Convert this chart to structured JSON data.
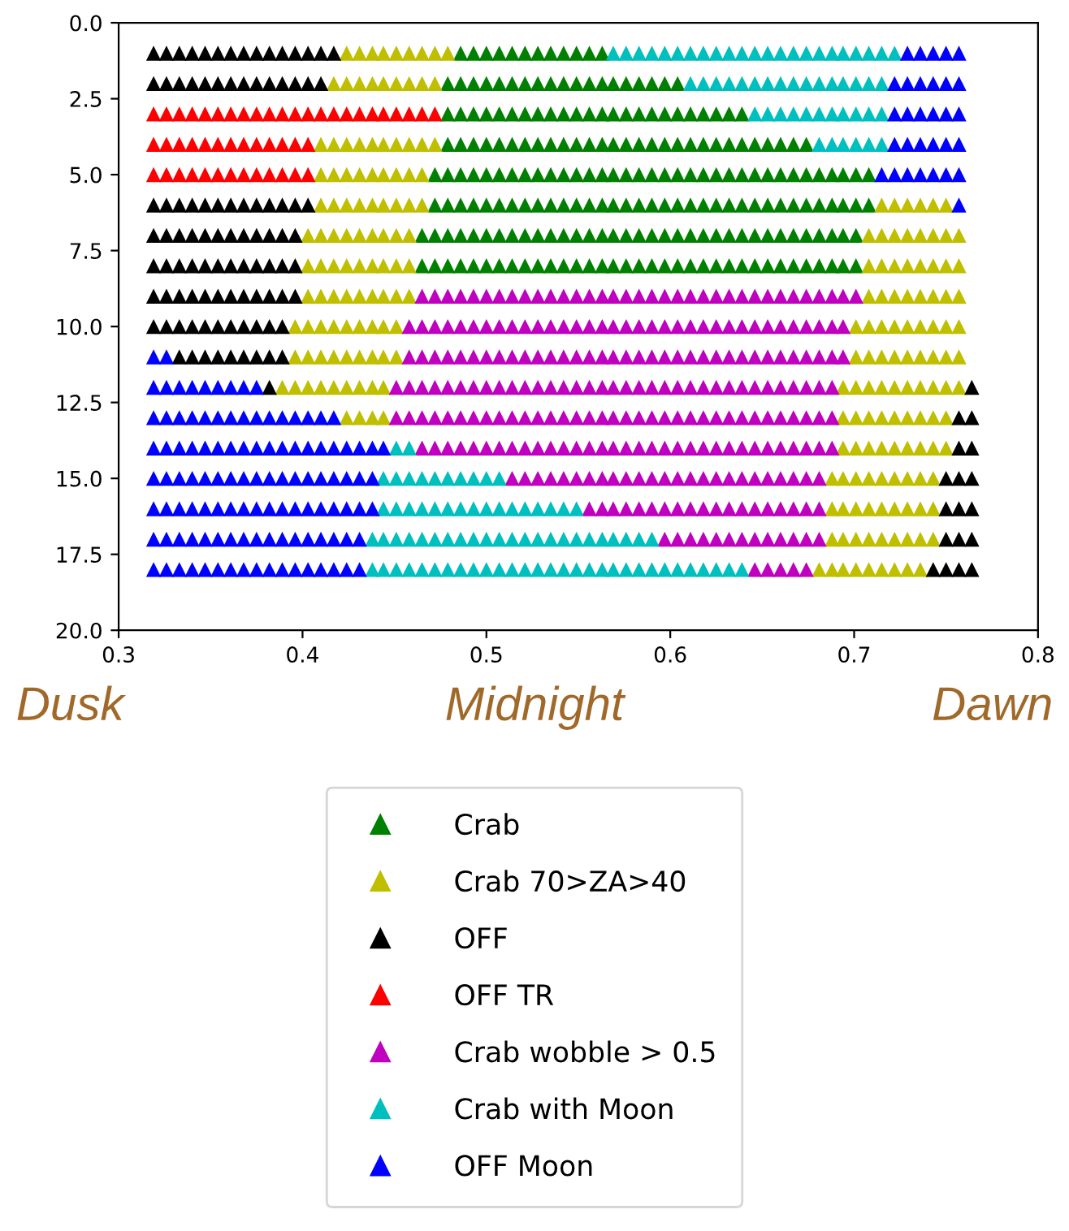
{
  "chart_data": {
    "type": "scatter",
    "marker": "triangle",
    "legend": "bottom",
    "xlim": [
      0.3,
      0.8
    ],
    "xticks": [
      0.3,
      0.4,
      0.5,
      0.6,
      0.7,
      0.8
    ],
    "ylim": [
      20,
      0
    ],
    "yticks": [
      {
        "value": 0,
        "label": "0.0"
      },
      {
        "value": 2.5,
        "label": "2.5"
      },
      {
        "value": 5,
        "label": "5.0"
      },
      {
        "value": 7.5,
        "label": "7.5"
      },
      {
        "value": 10,
        "label": "10.0"
      },
      {
        "value": 12.5,
        "label": "12.5"
      },
      {
        "value": 15,
        "label": "15.0"
      },
      {
        "value": 17.5,
        "label": "17.5"
      },
      {
        "value": 20,
        "label": "20.0"
      }
    ],
    "annotations": [
      "Dusk",
      "Midnight",
      "Dawn"
    ],
    "series": [
      {
        "name": "Crab",
        "color": "#008000",
        "x": [
          0.486,
          0.493,
          0.5,
          0.507,
          0.514,
          0.521,
          0.528,
          0.535,
          0.542,
          0.549,
          0.556,
          0.563,
          0.479,
          0.486,
          0.493,
          0.5,
          0.507,
          0.514,
          0.521,
          0.528,
          0.535,
          0.542,
          0.549,
          0.556,
          0.563,
          0.569,
          0.576,
          0.583,
          0.59,
          0.597,
          0.604,
          0.479,
          0.486,
          0.493,
          0.5,
          0.507,
          0.514,
          0.521,
          0.528,
          0.535,
          0.542,
          0.549,
          0.556,
          0.563,
          0.569,
          0.576,
          0.583,
          0.59,
          0.597,
          0.604,
          0.611,
          0.618,
          0.625,
          0.632,
          0.639,
          0.479,
          0.486,
          0.493,
          0.5,
          0.507,
          0.514,
          0.521,
          0.528,
          0.535,
          0.542,
          0.549,
          0.556,
          0.563,
          0.569,
          0.576,
          0.583,
          0.59,
          0.597,
          0.604,
          0.611,
          0.618,
          0.625,
          0.632,
          0.639,
          0.646,
          0.653,
          0.66,
          0.667,
          0.674,
          0.472,
          0.479,
          0.486,
          0.493,
          0.5,
          0.507,
          0.514,
          0.521,
          0.528,
          0.535,
          0.542,
          0.549,
          0.556,
          0.563,
          0.569,
          0.576,
          0.583,
          0.59,
          0.597,
          0.604,
          0.611,
          0.618,
          0.625,
          0.632,
          0.639,
          0.646,
          0.653,
          0.66,
          0.667,
          0.674,
          0.681,
          0.688,
          0.694,
          0.701,
          0.708,
          0.472,
          0.479,
          0.486,
          0.493,
          0.5,
          0.507,
          0.514,
          0.521,
          0.528,
          0.535,
          0.542,
          0.549,
          0.556,
          0.563,
          0.569,
          0.576,
          0.583,
          0.59,
          0.597,
          0.604,
          0.611,
          0.618,
          0.625,
          0.632,
          0.639,
          0.646,
          0.653,
          0.66,
          0.667,
          0.674,
          0.681,
          0.688,
          0.694,
          0.701,
          0.708,
          0.465,
          0.472,
          0.479,
          0.486,
          0.493,
          0.5,
          0.507,
          0.514,
          0.521,
          0.528,
          0.535,
          0.542,
          0.549,
          0.556,
          0.563,
          0.569,
          0.576,
          0.583,
          0.59,
          0.597,
          0.604,
          0.611,
          0.618,
          0.625,
          0.632,
          0.639,
          0.646,
          0.653,
          0.66,
          0.667,
          0.674,
          0.681,
          0.688,
          0.694,
          0.701,
          0.465,
          0.472,
          0.479,
          0.486,
          0.493,
          0.5,
          0.507,
          0.514,
          0.521,
          0.528,
          0.535,
          0.542,
          0.549,
          0.556,
          0.563,
          0.569,
          0.576,
          0.583,
          0.59,
          0.597,
          0.604,
          0.611,
          0.618,
          0.625,
          0.632,
          0.639,
          0.646,
          0.653,
          0.66,
          0.667,
          0.674,
          0.681,
          0.688,
          0.694,
          0.701
        ],
        "values": [
          1,
          1,
          1,
          1,
          1,
          1,
          1,
          1,
          1,
          1,
          1,
          1,
          2,
          2,
          2,
          2,
          2,
          2,
          2,
          2,
          2,
          2,
          2,
          2,
          2,
          2,
          2,
          2,
          2,
          2,
          2,
          3,
          3,
          3,
          3,
          3,
          3,
          3,
          3,
          3,
          3,
          3,
          3,
          3,
          3,
          3,
          3,
          3,
          3,
          3,
          3,
          3,
          3,
          3,
          3,
          4,
          4,
          4,
          4,
          4,
          4,
          4,
          4,
          4,
          4,
          4,
          4,
          4,
          4,
          4,
          4,
          4,
          4,
          4,
          4,
          4,
          4,
          4,
          4,
          4,
          4,
          4,
          4,
          4,
          5,
          5,
          5,
          5,
          5,
          5,
          5,
          5,
          5,
          5,
          5,
          5,
          5,
          5,
          5,
          5,
          5,
          5,
          5,
          5,
          5,
          5,
          5,
          5,
          5,
          5,
          5,
          5,
          5,
          5,
          5,
          5,
          5,
          5,
          5,
          6,
          6,
          6,
          6,
          6,
          6,
          6,
          6,
          6,
          6,
          6,
          6,
          6,
          6,
          6,
          6,
          6,
          6,
          6,
          6,
          6,
          6,
          6,
          6,
          6,
          6,
          6,
          6,
          6,
          6,
          6,
          6,
          6,
          6,
          6,
          7,
          7,
          7,
          7,
          7,
          7,
          7,
          7,
          7,
          7,
          7,
          7,
          7,
          7,
          7,
          7,
          7,
          7,
          7,
          7,
          7,
          7,
          7,
          7,
          7,
          7,
          7,
          7,
          7,
          7,
          7,
          7,
          7,
          7,
          7,
          8,
          8,
          8,
          8,
          8,
          8,
          8,
          8,
          8,
          8,
          8,
          8,
          8,
          8,
          8,
          8,
          8,
          8,
          8,
          8,
          8,
          8,
          8,
          8,
          8,
          8,
          8,
          8,
          8,
          8,
          8,
          8,
          8,
          8,
          8
        ]
      },
      {
        "name": "Crab 70>ZA>40",
        "color": "#bfbf00",
        "x": [
          0.424,
          0.431,
          0.438,
          0.444,
          0.451,
          0.458,
          0.465,
          0.472,
          0.479,
          0.417,
          0.424,
          0.431,
          0.438,
          0.444,
          0.451,
          0.458,
          0.465,
          0.472,
          0.41,
          0.417,
          0.424,
          0.431,
          0.438,
          0.444,
          0.451,
          0.458,
          0.465,
          0.472,
          0.41,
          0.417,
          0.424,
          0.431,
          0.438,
          0.444,
          0.451,
          0.458,
          0.465,
          0.41,
          0.417,
          0.424,
          0.431,
          0.438,
          0.444,
          0.451,
          0.458,
          0.465,
          0.715,
          0.722,
          0.729,
          0.736,
          0.743,
          0.75,
          0.403,
          0.41,
          0.417,
          0.424,
          0.431,
          0.438,
          0.444,
          0.451,
          0.458,
          0.708,
          0.715,
          0.722,
          0.729,
          0.736,
          0.743,
          0.75,
          0.757,
          0.403,
          0.41,
          0.417,
          0.424,
          0.431,
          0.438,
          0.444,
          0.451,
          0.458,
          0.708,
          0.715,
          0.722,
          0.729,
          0.736,
          0.743,
          0.75,
          0.757,
          0.403,
          0.41,
          0.417,
          0.424,
          0.431,
          0.438,
          0.444,
          0.451,
          0.458,
          0.708,
          0.715,
          0.722,
          0.729,
          0.736,
          0.743,
          0.75,
          0.757,
          0.396,
          0.403,
          0.41,
          0.417,
          0.424,
          0.431,
          0.438,
          0.444,
          0.451,
          0.701,
          0.708,
          0.715,
          0.722,
          0.729,
          0.736,
          0.743,
          0.75,
          0.757,
          0.396,
          0.403,
          0.41,
          0.417,
          0.424,
          0.431,
          0.438,
          0.444,
          0.451,
          0.701,
          0.708,
          0.715,
          0.722,
          0.729,
          0.736,
          0.743,
          0.75,
          0.757,
          0.389,
          0.396,
          0.403,
          0.41,
          0.417,
          0.424,
          0.431,
          0.438,
          0.444,
          0.694,
          0.701,
          0.708,
          0.715,
          0.722,
          0.729,
          0.736,
          0.743,
          0.75,
          0.757,
          0.424,
          0.431,
          0.438,
          0.444,
          0.694,
          0.701,
          0.708,
          0.715,
          0.722,
          0.729,
          0.736,
          0.743,
          0.75,
          0.694,
          0.701,
          0.708,
          0.715,
          0.722,
          0.729,
          0.736,
          0.743,
          0.75,
          0.688,
          0.694,
          0.701,
          0.708,
          0.715,
          0.722,
          0.729,
          0.736,
          0.743,
          0.688,
          0.694,
          0.701,
          0.708,
          0.715,
          0.722,
          0.729,
          0.736,
          0.743,
          0.688,
          0.694,
          0.701,
          0.708,
          0.715,
          0.722,
          0.729,
          0.736,
          0.743,
          0.681,
          0.688,
          0.694,
          0.701,
          0.708,
          0.715,
          0.722,
          0.729,
          0.736
        ],
        "values": [
          1,
          1,
          1,
          1,
          1,
          1,
          1,
          1,
          1,
          2,
          2,
          2,
          2,
          2,
          2,
          2,
          2,
          2,
          4,
          4,
          4,
          4,
          4,
          4,
          4,
          4,
          4,
          4,
          5,
          5,
          5,
          5,
          5,
          5,
          5,
          5,
          5,
          6,
          6,
          6,
          6,
          6,
          6,
          6,
          6,
          6,
          6,
          6,
          6,
          6,
          6,
          6,
          7,
          7,
          7,
          7,
          7,
          7,
          7,
          7,
          7,
          7,
          7,
          7,
          7,
          7,
          7,
          7,
          7,
          8,
          8,
          8,
          8,
          8,
          8,
          8,
          8,
          8,
          8,
          8,
          8,
          8,
          8,
          8,
          8,
          8,
          9,
          9,
          9,
          9,
          9,
          9,
          9,
          9,
          9,
          9,
          9,
          9,
          9,
          9,
          9,
          9,
          9,
          10,
          10,
          10,
          10,
          10,
          10,
          10,
          10,
          10,
          10,
          10,
          10,
          10,
          10,
          10,
          10,
          10,
          10,
          11,
          11,
          11,
          11,
          11,
          11,
          11,
          11,
          11,
          11,
          11,
          11,
          11,
          11,
          11,
          11,
          11,
          11,
          12,
          12,
          12,
          12,
          12,
          12,
          12,
          12,
          12,
          12,
          12,
          12,
          12,
          12,
          12,
          12,
          12,
          12,
          12,
          13,
          13,
          13,
          13,
          13,
          13,
          13,
          13,
          13,
          13,
          13,
          13,
          13,
          14,
          14,
          14,
          14,
          14,
          14,
          14,
          14,
          14,
          15,
          15,
          15,
          15,
          15,
          15,
          15,
          15,
          15,
          16,
          16,
          16,
          16,
          16,
          16,
          16,
          16,
          16,
          17,
          17,
          17,
          17,
          17,
          17,
          17,
          17,
          17,
          18,
          18,
          18,
          18,
          18,
          18,
          18,
          18,
          18
        ]
      },
      {
        "name": "OFF",
        "color": "#000000",
        "x": [
          0.319,
          0.326,
          0.333,
          0.34,
          0.347,
          0.354,
          0.361,
          0.368,
          0.375,
          0.382,
          0.389,
          0.396,
          0.403,
          0.41,
          0.417,
          0.319,
          0.326,
          0.333,
          0.34,
          0.347,
          0.354,
          0.361,
          0.368,
          0.375,
          0.382,
          0.389,
          0.396,
          0.403,
          0.41,
          0.319,
          0.326,
          0.333,
          0.34,
          0.347,
          0.354,
          0.361,
          0.368,
          0.375,
          0.382,
          0.389,
          0.396,
          0.403,
          0.319,
          0.326,
          0.333,
          0.34,
          0.347,
          0.354,
          0.361,
          0.368,
          0.375,
          0.382,
          0.389,
          0.396,
          0.319,
          0.326,
          0.333,
          0.34,
          0.347,
          0.354,
          0.361,
          0.368,
          0.375,
          0.382,
          0.389,
          0.396,
          0.319,
          0.326,
          0.333,
          0.34,
          0.347,
          0.354,
          0.361,
          0.368,
          0.375,
          0.382,
          0.389,
          0.396,
          0.319,
          0.326,
          0.333,
          0.34,
          0.347,
          0.354,
          0.361,
          0.368,
          0.375,
          0.382,
          0.389,
          0.333,
          0.34,
          0.347,
          0.354,
          0.361,
          0.368,
          0.375,
          0.382,
          0.389,
          0.382,
          0.764,
          0.757,
          0.764,
          0.757,
          0.764,
          0.75,
          0.757,
          0.764,
          0.75,
          0.757,
          0.764,
          0.75,
          0.757,
          0.764,
          0.743,
          0.75,
          0.757,
          0.764
        ],
        "values": [
          1,
          1,
          1,
          1,
          1,
          1,
          1,
          1,
          1,
          1,
          1,
          1,
          1,
          1,
          1,
          2,
          2,
          2,
          2,
          2,
          2,
          2,
          2,
          2,
          2,
          2,
          2,
          2,
          2,
          6,
          6,
          6,
          6,
          6,
          6,
          6,
          6,
          6,
          6,
          6,
          6,
          6,
          7,
          7,
          7,
          7,
          7,
          7,
          7,
          7,
          7,
          7,
          7,
          7,
          8,
          8,
          8,
          8,
          8,
          8,
          8,
          8,
          8,
          8,
          8,
          8,
          9,
          9,
          9,
          9,
          9,
          9,
          9,
          9,
          9,
          9,
          9,
          9,
          10,
          10,
          10,
          10,
          10,
          10,
          10,
          10,
          10,
          10,
          10,
          11,
          11,
          11,
          11,
          11,
          11,
          11,
          11,
          11,
          12,
          12,
          13,
          13,
          14,
          14,
          15,
          15,
          15,
          16,
          16,
          16,
          17,
          17,
          17,
          18,
          18,
          18,
          18
        ]
      },
      {
        "name": "OFF TR",
        "color": "#ff0000",
        "x": [
          0.319,
          0.326,
          0.333,
          0.34,
          0.347,
          0.354,
          0.361,
          0.368,
          0.375,
          0.382,
          0.389,
          0.396,
          0.403,
          0.41,
          0.417,
          0.424,
          0.431,
          0.438,
          0.444,
          0.451,
          0.458,
          0.465,
          0.472,
          0.319,
          0.326,
          0.333,
          0.34,
          0.347,
          0.354,
          0.361,
          0.368,
          0.375,
          0.382,
          0.389,
          0.396,
          0.403,
          0.319,
          0.326,
          0.333,
          0.34,
          0.347,
          0.354,
          0.361,
          0.368,
          0.375,
          0.382,
          0.389,
          0.396,
          0.403
        ],
        "values": [
          3,
          3,
          3,
          3,
          3,
          3,
          3,
          3,
          3,
          3,
          3,
          3,
          3,
          3,
          3,
          3,
          3,
          3,
          3,
          3,
          3,
          3,
          3,
          4,
          4,
          4,
          4,
          4,
          4,
          4,
          4,
          4,
          4,
          4,
          4,
          4,
          5,
          5,
          5,
          5,
          5,
          5,
          5,
          5,
          5,
          5,
          5,
          5,
          5
        ]
      },
      {
        "name": "Crab wobble > 0.5",
        "color": "#bf00bf",
        "x": [
          0.465,
          0.472,
          0.479,
          0.486,
          0.493,
          0.5,
          0.507,
          0.514,
          0.521,
          0.528,
          0.535,
          0.542,
          0.549,
          0.556,
          0.563,
          0.569,
          0.576,
          0.583,
          0.59,
          0.597,
          0.604,
          0.611,
          0.618,
          0.625,
          0.632,
          0.639,
          0.646,
          0.653,
          0.66,
          0.667,
          0.674,
          0.681,
          0.688,
          0.694,
          0.701,
          0.458,
          0.465,
          0.472,
          0.479,
          0.486,
          0.493,
          0.5,
          0.507,
          0.514,
          0.521,
          0.528,
          0.535,
          0.542,
          0.549,
          0.556,
          0.563,
          0.569,
          0.576,
          0.583,
          0.59,
          0.597,
          0.604,
          0.611,
          0.618,
          0.625,
          0.632,
          0.639,
          0.646,
          0.653,
          0.66,
          0.667,
          0.674,
          0.681,
          0.688,
          0.694,
          0.458,
          0.465,
          0.472,
          0.479,
          0.486,
          0.493,
          0.5,
          0.507,
          0.514,
          0.521,
          0.528,
          0.535,
          0.542,
          0.549,
          0.556,
          0.563,
          0.569,
          0.576,
          0.583,
          0.59,
          0.597,
          0.604,
          0.611,
          0.618,
          0.625,
          0.632,
          0.639,
          0.646,
          0.653,
          0.66,
          0.667,
          0.674,
          0.681,
          0.688,
          0.694,
          0.451,
          0.458,
          0.465,
          0.472,
          0.479,
          0.486,
          0.493,
          0.5,
          0.507,
          0.514,
          0.521,
          0.528,
          0.535,
          0.542,
          0.549,
          0.556,
          0.563,
          0.569,
          0.576,
          0.583,
          0.59,
          0.597,
          0.604,
          0.611,
          0.618,
          0.625,
          0.632,
          0.639,
          0.646,
          0.653,
          0.66,
          0.667,
          0.674,
          0.681,
          0.688,
          0.451,
          0.458,
          0.465,
          0.472,
          0.479,
          0.486,
          0.493,
          0.5,
          0.507,
          0.514,
          0.521,
          0.528,
          0.535,
          0.542,
          0.549,
          0.556,
          0.563,
          0.569,
          0.576,
          0.583,
          0.59,
          0.597,
          0.604,
          0.611,
          0.618,
          0.625,
          0.632,
          0.639,
          0.646,
          0.653,
          0.66,
          0.667,
          0.674,
          0.681,
          0.688,
          0.465,
          0.472,
          0.479,
          0.486,
          0.493,
          0.5,
          0.507,
          0.514,
          0.521,
          0.528,
          0.535,
          0.542,
          0.549,
          0.556,
          0.563,
          0.569,
          0.576,
          0.583,
          0.59,
          0.597,
          0.604,
          0.611,
          0.618,
          0.625,
          0.632,
          0.639,
          0.646,
          0.653,
          0.66,
          0.667,
          0.674,
          0.681,
          0.688,
          0.514,
          0.521,
          0.528,
          0.535,
          0.542,
          0.549,
          0.556,
          0.563,
          0.569,
          0.576,
          0.583,
          0.59,
          0.597,
          0.604,
          0.611,
          0.618,
          0.625,
          0.632,
          0.639,
          0.646,
          0.653,
          0.66,
          0.667,
          0.674,
          0.681,
          0.556,
          0.563,
          0.569,
          0.576,
          0.583,
          0.59,
          0.597,
          0.604,
          0.611,
          0.618,
          0.625,
          0.632,
          0.639,
          0.646,
          0.653,
          0.66,
          0.667,
          0.674,
          0.681,
          0.597,
          0.604,
          0.611,
          0.618,
          0.625,
          0.632,
          0.639,
          0.646,
          0.653,
          0.66,
          0.667,
          0.674,
          0.681,
          0.646,
          0.653,
          0.66,
          0.667,
          0.674
        ],
        "values": [
          9,
          9,
          9,
          9,
          9,
          9,
          9,
          9,
          9,
          9,
          9,
          9,
          9,
          9,
          9,
          9,
          9,
          9,
          9,
          9,
          9,
          9,
          9,
          9,
          9,
          9,
          9,
          9,
          9,
          9,
          9,
          9,
          9,
          9,
          9,
          10,
          10,
          10,
          10,
          10,
          10,
          10,
          10,
          10,
          10,
          10,
          10,
          10,
          10,
          10,
          10,
          10,
          10,
          10,
          10,
          10,
          10,
          10,
          10,
          10,
          10,
          10,
          10,
          10,
          10,
          10,
          10,
          10,
          10,
          10,
          11,
          11,
          11,
          11,
          11,
          11,
          11,
          11,
          11,
          11,
          11,
          11,
          11,
          11,
          11,
          11,
          11,
          11,
          11,
          11,
          11,
          11,
          11,
          11,
          11,
          11,
          11,
          11,
          11,
          11,
          11,
          11,
          11,
          11,
          11,
          12,
          12,
          12,
          12,
          12,
          12,
          12,
          12,
          12,
          12,
          12,
          12,
          12,
          12,
          12,
          12,
          12,
          12,
          12,
          12,
          12,
          12,
          12,
          12,
          12,
          12,
          12,
          12,
          12,
          12,
          12,
          12,
          12,
          12,
          12,
          13,
          13,
          13,
          13,
          13,
          13,
          13,
          13,
          13,
          13,
          13,
          13,
          13,
          13,
          13,
          13,
          13,
          13,
          13,
          13,
          13,
          13,
          13,
          13,
          13,
          13,
          13,
          13,
          13,
          13,
          13,
          13,
          13,
          13,
          13,
          14,
          14,
          14,
          14,
          14,
          14,
          14,
          14,
          14,
          14,
          14,
          14,
          14,
          14,
          14,
          14,
          14,
          14,
          14,
          14,
          14,
          14,
          14,
          14,
          14,
          14,
          14,
          14,
          14,
          14,
          14,
          14,
          14,
          15,
          15,
          15,
          15,
          15,
          15,
          15,
          15,
          15,
          15,
          15,
          15,
          15,
          15,
          15,
          15,
          15,
          15,
          15,
          15,
          15,
          15,
          15,
          15,
          15,
          16,
          16,
          16,
          16,
          16,
          16,
          16,
          16,
          16,
          16,
          16,
          16,
          16,
          16,
          16,
          16,
          16,
          16,
          16,
          17,
          17,
          17,
          17,
          17,
          17,
          17,
          17,
          17,
          17,
          17,
          17,
          17,
          18,
          18,
          18,
          18,
          18
        ]
      },
      {
        "name": "Crab with Moon",
        "color": "#00bfbf",
        "x": [
          0.569,
          0.576,
          0.583,
          0.59,
          0.597,
          0.604,
          0.611,
          0.618,
          0.625,
          0.632,
          0.639,
          0.646,
          0.653,
          0.66,
          0.667,
          0.674,
          0.681,
          0.688,
          0.694,
          0.701,
          0.708,
          0.715,
          0.722,
          0.611,
          0.618,
          0.625,
          0.632,
          0.639,
          0.646,
          0.653,
          0.66,
          0.667,
          0.674,
          0.681,
          0.688,
          0.694,
          0.701,
          0.708,
          0.715,
          0.646,
          0.653,
          0.66,
          0.667,
          0.674,
          0.681,
          0.688,
          0.694,
          0.701,
          0.708,
          0.715,
          0.681,
          0.688,
          0.694,
          0.701,
          0.708,
          0.715,
          0.451,
          0.458,
          0.444,
          0.451,
          0.458,
          0.465,
          0.472,
          0.479,
          0.486,
          0.493,
          0.5,
          0.507,
          0.444,
          0.451,
          0.458,
          0.465,
          0.472,
          0.479,
          0.486,
          0.493,
          0.5,
          0.507,
          0.514,
          0.521,
          0.528,
          0.535,
          0.542,
          0.549,
          0.438,
          0.444,
          0.451,
          0.458,
          0.465,
          0.472,
          0.479,
          0.486,
          0.493,
          0.5,
          0.507,
          0.514,
          0.521,
          0.528,
          0.535,
          0.542,
          0.549,
          0.556,
          0.563,
          0.569,
          0.576,
          0.583,
          0.59,
          0.438,
          0.444,
          0.451,
          0.458,
          0.465,
          0.472,
          0.479,
          0.486,
          0.493,
          0.5,
          0.507,
          0.514,
          0.521,
          0.528,
          0.535,
          0.542,
          0.549,
          0.556,
          0.563,
          0.569,
          0.576,
          0.583,
          0.59,
          0.597,
          0.604,
          0.611,
          0.618,
          0.625,
          0.632,
          0.639
        ],
        "values": [
          1,
          1,
          1,
          1,
          1,
          1,
          1,
          1,
          1,
          1,
          1,
          1,
          1,
          1,
          1,
          1,
          1,
          1,
          1,
          1,
          1,
          1,
          1,
          2,
          2,
          2,
          2,
          2,
          2,
          2,
          2,
          2,
          2,
          2,
          2,
          2,
          2,
          2,
          2,
          3,
          3,
          3,
          3,
          3,
          3,
          3,
          3,
          3,
          3,
          3,
          4,
          4,
          4,
          4,
          4,
          4,
          14,
          14,
          15,
          15,
          15,
          15,
          15,
          15,
          15,
          15,
          15,
          15,
          16,
          16,
          16,
          16,
          16,
          16,
          16,
          16,
          16,
          16,
          16,
          16,
          16,
          16,
          16,
          16,
          17,
          17,
          17,
          17,
          17,
          17,
          17,
          17,
          17,
          17,
          17,
          17,
          17,
          17,
          17,
          17,
          17,
          17,
          17,
          17,
          17,
          17,
          17,
          18,
          18,
          18,
          18,
          18,
          18,
          18,
          18,
          18,
          18,
          18,
          18,
          18,
          18,
          18,
          18,
          18,
          18,
          18,
          18,
          18,
          18,
          18,
          18,
          18,
          18,
          18,
          18,
          18,
          18
        ]
      },
      {
        "name": "OFF Moon",
        "color": "#0000ff",
        "x": [
          0.729,
          0.736,
          0.743,
          0.75,
          0.757,
          0.722,
          0.729,
          0.736,
          0.743,
          0.75,
          0.757,
          0.722,
          0.729,
          0.736,
          0.743,
          0.75,
          0.757,
          0.722,
          0.729,
          0.736,
          0.743,
          0.75,
          0.757,
          0.715,
          0.722,
          0.729,
          0.736,
          0.743,
          0.75,
          0.757,
          0.757,
          0.319,
          0.326,
          0.319,
          0.326,
          0.333,
          0.34,
          0.347,
          0.354,
          0.361,
          0.368,
          0.375,
          0.319,
          0.326,
          0.333,
          0.34,
          0.347,
          0.354,
          0.361,
          0.368,
          0.375,
          0.382,
          0.389,
          0.396,
          0.403,
          0.41,
          0.417,
          0.319,
          0.326,
          0.333,
          0.34,
          0.347,
          0.354,
          0.361,
          0.368,
          0.375,
          0.382,
          0.389,
          0.396,
          0.403,
          0.41,
          0.417,
          0.424,
          0.431,
          0.438,
          0.444,
          0.319,
          0.326,
          0.333,
          0.34,
          0.347,
          0.354,
          0.361,
          0.368,
          0.375,
          0.382,
          0.389,
          0.396,
          0.403,
          0.41,
          0.417,
          0.424,
          0.431,
          0.438,
          0.319,
          0.326,
          0.333,
          0.34,
          0.347,
          0.354,
          0.361,
          0.368,
          0.375,
          0.382,
          0.389,
          0.396,
          0.403,
          0.41,
          0.417,
          0.424,
          0.431,
          0.438,
          0.319,
          0.326,
          0.333,
          0.34,
          0.347,
          0.354,
          0.361,
          0.368,
          0.375,
          0.382,
          0.389,
          0.396,
          0.403,
          0.41,
          0.417,
          0.424,
          0.431,
          0.319,
          0.326,
          0.333,
          0.34,
          0.347,
          0.354,
          0.361,
          0.368,
          0.375,
          0.382,
          0.389,
          0.396,
          0.403,
          0.41,
          0.417,
          0.424,
          0.431
        ],
        "values": [
          1,
          1,
          1,
          1,
          1,
          2,
          2,
          2,
          2,
          2,
          2,
          3,
          3,
          3,
          3,
          3,
          3,
          4,
          4,
          4,
          4,
          4,
          4,
          5,
          5,
          5,
          5,
          5,
          5,
          5,
          6,
          11,
          11,
          12,
          12,
          12,
          12,
          12,
          12,
          12,
          12,
          12,
          13,
          13,
          13,
          13,
          13,
          13,
          13,
          13,
          13,
          13,
          13,
          13,
          13,
          13,
          13,
          14,
          14,
          14,
          14,
          14,
          14,
          14,
          14,
          14,
          14,
          14,
          14,
          14,
          14,
          14,
          14,
          14,
          14,
          14,
          15,
          15,
          15,
          15,
          15,
          15,
          15,
          15,
          15,
          15,
          15,
          15,
          15,
          15,
          15,
          15,
          15,
          15,
          16,
          16,
          16,
          16,
          16,
          16,
          16,
          16,
          16,
          16,
          16,
          16,
          16,
          16,
          16,
          16,
          16,
          16,
          17,
          17,
          17,
          17,
          17,
          17,
          17,
          17,
          17,
          17,
          17,
          17,
          17,
          17,
          17,
          17,
          17,
          18,
          18,
          18,
          18,
          18,
          18,
          18,
          18,
          18,
          18,
          18,
          18,
          18,
          18,
          18,
          18,
          18
        ]
      }
    ]
  }
}
